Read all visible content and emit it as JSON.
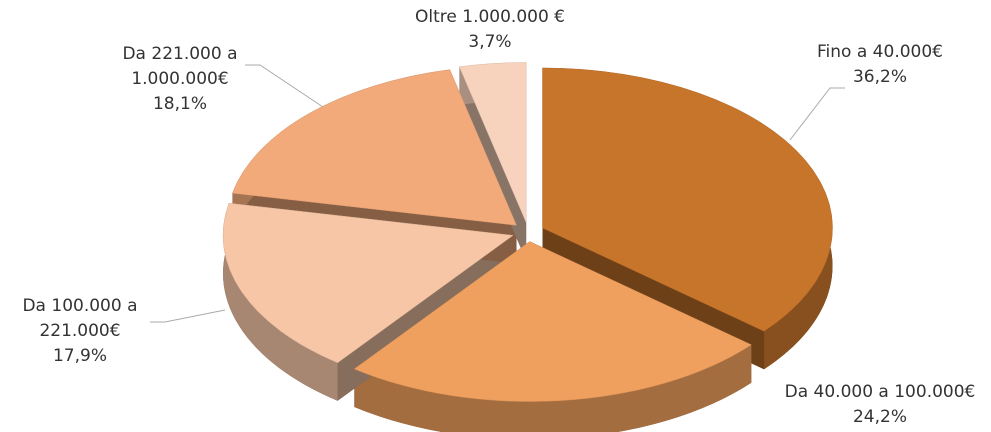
{
  "chart_data": {
    "type": "pie3d",
    "categories": [
      "Fino a 40.000€",
      "Da 40.000 a 100.000€",
      "Da 100.000 a 221.000€",
      "Da 221.000 a 1.000.000€",
      "Oltre 1.000.000 €"
    ],
    "values": [
      36.2,
      24.2,
      17.9,
      18.1,
      3.7
    ],
    "value_labels": [
      "36,2%",
      "24,2%",
      "17,9%",
      "18,1%",
      "3,7%"
    ],
    "colors": [
      "#c8752c",
      "#f0a05e",
      "#f6c6a6",
      "#f2aa7a",
      "#f7d2bc"
    ]
  }
}
